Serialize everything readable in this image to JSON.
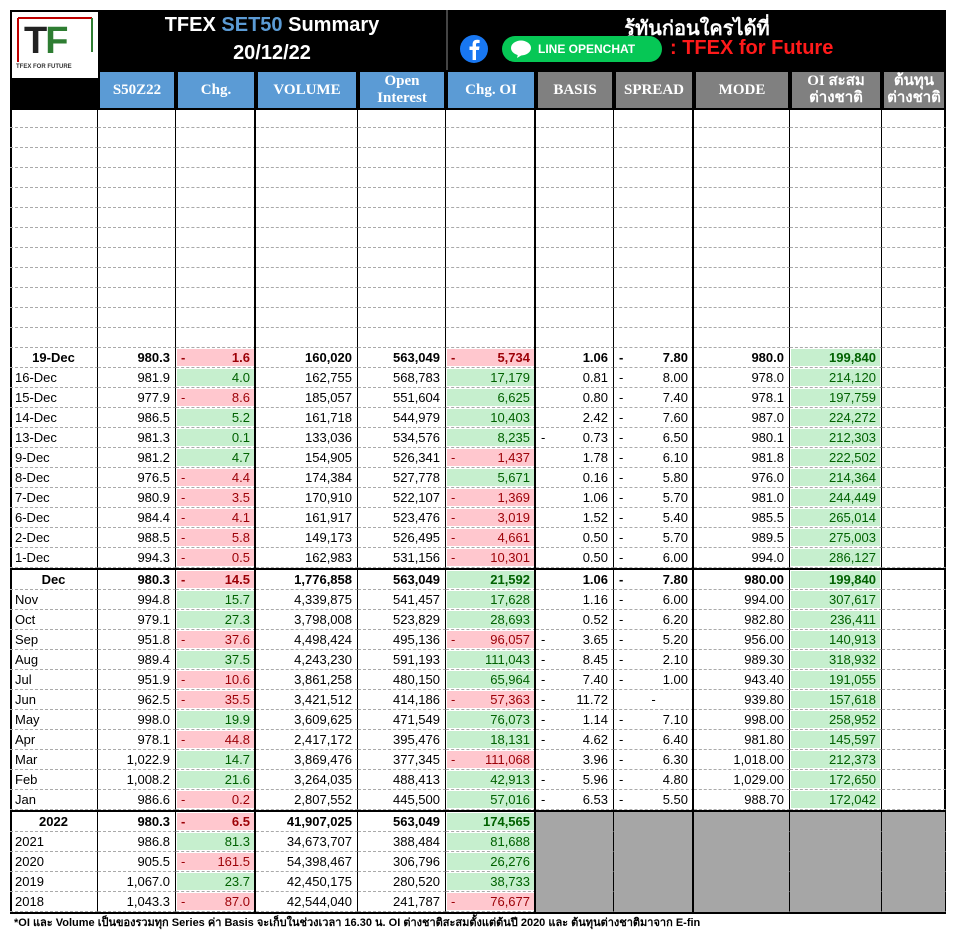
{
  "header": {
    "logo": [
      "T",
      "F"
    ],
    "logo_caption": "TFEX FOR FUTURE",
    "title_prefix": "TFEX",
    "title_highlight": "SET50",
    "title_suffix": "Summary",
    "date": "20/12/22",
    "tagline": "รู้ทันก่อนใครได้ที่",
    "line_button": "LINE OPENCHAT",
    "channel": ": TFEX for Future"
  },
  "columns": [
    "S50Z22",
    "Chg.",
    "VOLUME",
    "Open Interest",
    "Chg. OI",
    "BASIS",
    "SPREAD",
    "MODE",
    "OI สะสม\nต่างชาติ",
    "ต้นทุน\nต่างชาติ"
  ],
  "daily": [
    [
      "19-Dec",
      "980.3",
      "-",
      "1.6",
      "160,020",
      "563,049",
      "-",
      "5,734",
      null,
      "1.06",
      "-",
      "7.80",
      "980.0",
      "199,840"
    ],
    [
      "16-Dec",
      "981.9",
      null,
      "4.0",
      "162,755",
      "568,783",
      null,
      "17,179",
      null,
      "0.81",
      "-",
      "8.00",
      "978.0",
      "214,120"
    ],
    [
      "15-Dec",
      "977.9",
      "-",
      "8.6",
      "185,057",
      "551,604",
      null,
      "6,625",
      null,
      "0.80",
      "-",
      "7.40",
      "978.1",
      "197,759"
    ],
    [
      "14-Dec",
      "986.5",
      null,
      "5.2",
      "161,718",
      "544,979",
      null,
      "10,403",
      null,
      "2.42",
      "-",
      "7.60",
      "987.0",
      "224,272"
    ],
    [
      "13-Dec",
      "981.3",
      null,
      "0.1",
      "133,036",
      "534,576",
      null,
      "8,235",
      "-",
      "0.73",
      "-",
      "6.50",
      "980.1",
      "212,303"
    ],
    [
      "9-Dec",
      "981.2",
      null,
      "4.7",
      "154,905",
      "526,341",
      "-",
      "1,437",
      null,
      "1.78",
      "-",
      "6.10",
      "981.8",
      "222,502"
    ],
    [
      "8-Dec",
      "976.5",
      "-",
      "4.4",
      "174,384",
      "527,778",
      null,
      "5,671",
      null,
      "0.16",
      "-",
      "5.80",
      "976.0",
      "214,364"
    ],
    [
      "7-Dec",
      "980.9",
      "-",
      "3.5",
      "170,910",
      "522,107",
      "-",
      "1,369",
      null,
      "1.06",
      "-",
      "5.70",
      "981.0",
      "244,449"
    ],
    [
      "6-Dec",
      "984.4",
      "-",
      "4.1",
      "161,917",
      "523,476",
      "-",
      "3,019",
      null,
      "1.52",
      "-",
      "5.40",
      "985.5",
      "265,014"
    ],
    [
      "2-Dec",
      "988.5",
      "-",
      "5.8",
      "149,173",
      "526,495",
      "-",
      "4,661",
      null,
      "0.50",
      "-",
      "5.70",
      "989.5",
      "275,003"
    ],
    [
      "1-Dec",
      "994.3",
      "-",
      "0.5",
      "162,983",
      "531,156",
      "-",
      "10,301",
      null,
      "0.50",
      "-",
      "6.00",
      "994.0",
      "286,127"
    ]
  ],
  "monthly": [
    [
      "Dec",
      "980.3",
      "-",
      "14.5",
      "1,776,858",
      "563,049",
      null,
      "21,592",
      null,
      "1.06",
      "-",
      "7.80",
      "980.00",
      "199,840"
    ],
    [
      "Nov",
      "994.8",
      null,
      "15.7",
      "4,339,875",
      "541,457",
      null,
      "17,628",
      null,
      "1.16",
      "-",
      "6.00",
      "994.00",
      "307,617"
    ],
    [
      "Oct",
      "979.1",
      null,
      "27.3",
      "3,798,008",
      "523,829",
      null,
      "28,693",
      null,
      "0.52",
      "-",
      "6.20",
      "982.80",
      "236,411"
    ],
    [
      "Sep",
      "951.8",
      "-",
      "37.6",
      "4,498,424",
      "495,136",
      "-",
      "96,057",
      "-",
      "3.65",
      "-",
      "5.20",
      "956.00",
      "140,913"
    ],
    [
      "Aug",
      "989.4",
      null,
      "37.5",
      "4,243,230",
      "591,193",
      null,
      "111,043",
      "-",
      "8.45",
      "-",
      "2.10",
      "989.30",
      "318,932"
    ],
    [
      "Jul",
      "951.9",
      "-",
      "10.6",
      "3,861,258",
      "480,150",
      null,
      "65,964",
      "-",
      "7.40",
      "-",
      "1.00",
      "943.40",
      "191,055"
    ],
    [
      "Jun",
      "962.5",
      "-",
      "35.5",
      "3,421,512",
      "414,186",
      "-",
      "57,363",
      "-",
      "11.72",
      "-",
      null,
      "939.80",
      "157,618"
    ],
    [
      "May",
      "998.0",
      null,
      "19.9",
      "3,609,625",
      "471,549",
      null,
      "76,073",
      "-",
      "1.14",
      "-",
      "7.10",
      "998.00",
      "258,952"
    ],
    [
      "Apr",
      "978.1",
      "-",
      "44.8",
      "2,417,172",
      "395,476",
      null,
      "18,131",
      "-",
      "4.62",
      "-",
      "6.40",
      "981.80",
      "145,597"
    ],
    [
      "Mar",
      "1,022.9",
      null,
      "14.7",
      "3,869,476",
      "377,345",
      "-",
      "111,068",
      null,
      "3.96",
      "-",
      "6.30",
      "1,018.00",
      "212,373"
    ],
    [
      "Feb",
      "1,008.2",
      null,
      "21.6",
      "3,264,035",
      "488,413",
      null,
      "42,913",
      "-",
      "5.96",
      "-",
      "4.80",
      "1,029.00",
      "172,650"
    ],
    [
      "Jan",
      "986.6",
      "-",
      "0.2",
      "2,807,552",
      "445,500",
      null,
      "57,016",
      "-",
      "6.53",
      "-",
      "5.50",
      "988.70",
      "172,042"
    ]
  ],
  "yearly": [
    [
      "2022",
      "980.3",
      "-",
      "6.5",
      "41,907,025",
      "563,049",
      null,
      "174,565"
    ],
    [
      "2021",
      "986.8",
      null,
      "81.3",
      "34,673,707",
      "388,484",
      null,
      "81,688"
    ],
    [
      "2020",
      "905.5",
      "-",
      "161.5",
      "54,398,467",
      "306,796",
      null,
      "26,276"
    ],
    [
      "2019",
      "1,067.0",
      null,
      "23.7",
      "42,450,175",
      "280,520",
      null,
      "38,733"
    ],
    [
      "2018",
      "1,043.3",
      "-",
      "87.0",
      "42,544,040",
      "241,787",
      "-",
      "76,677"
    ]
  ],
  "footnote": "*OI และ Volume เป็นของรวมทุก Series ค่า Basis จะเก็บในช่วงเวลา 16.30 น. OI ต่างชาติสะสมตั้งแต่ต้นปี 2020 และ ต้นทุนต่างชาติมาจาก E-fin"
}
